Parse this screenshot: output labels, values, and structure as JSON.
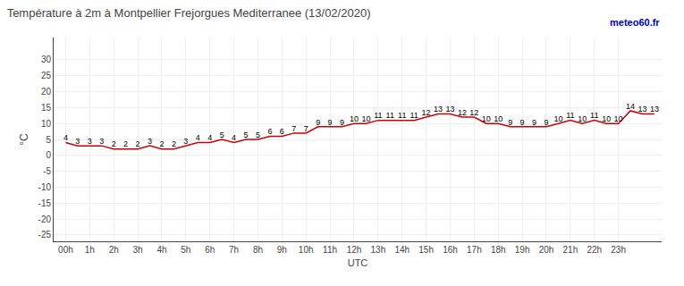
{
  "chart_data": {
    "type": "line",
    "title": "Température à 2m à Montpellier Frejorgues Mediterranee (13/02/2020)",
    "x_label": "UTC",
    "y_label": "°C",
    "annotations": [
      {
        "text": "meteo60.fr",
        "color": "#0000cc"
      }
    ],
    "x": [
      0,
      0.5,
      1,
      1.5,
      2,
      2.5,
      3,
      3.5,
      4,
      4.5,
      5,
      5.5,
      6,
      6.5,
      7,
      7.5,
      8,
      8.5,
      9,
      9.5,
      10,
      10.5,
      11,
      11.5,
      12,
      12.5,
      13,
      13.5,
      14,
      14.5,
      15,
      15.5,
      16,
      16.5,
      17,
      17.5,
      18,
      18.5,
      19,
      19.5,
      20,
      20.5,
      21,
      21.5,
      22,
      22.5,
      23,
      23.5,
      24,
      24.5
    ],
    "values": [
      4,
      3,
      3,
      3,
      2,
      2,
      2,
      3,
      2,
      2,
      3,
      4,
      4,
      5,
      4,
      5,
      5,
      6,
      6,
      7,
      7,
      9,
      9,
      9,
      10,
      10,
      11,
      11,
      11,
      11,
      12,
      13,
      13,
      12,
      12,
      10,
      10,
      9,
      9,
      9,
      9,
      10,
      11,
      10,
      11,
      10,
      10,
      14,
      13,
      13
    ],
    "color": "#cc0000",
    "data_labels": true,
    "grid": true,
    "xlim": [
      -0.5,
      24.8
    ],
    "xticks": [
      {
        "value": 0,
        "label": "00h"
      },
      {
        "value": 1,
        "label": "1h"
      },
      {
        "value": 2,
        "label": "2h"
      },
      {
        "value": 3,
        "label": "3h"
      },
      {
        "value": 4,
        "label": "4h"
      },
      {
        "value": 5,
        "label": "5h"
      },
      {
        "value": 6,
        "label": "6h"
      },
      {
        "value": 7,
        "label": "7h"
      },
      {
        "value": 8,
        "label": "8h"
      },
      {
        "value": 9,
        "label": "9h"
      },
      {
        "value": 10,
        "label": "10h"
      },
      {
        "value": 11,
        "label": "11h"
      },
      {
        "value": 12,
        "label": "12h"
      },
      {
        "value": 13,
        "label": "13h"
      },
      {
        "value": 14,
        "label": "14h"
      },
      {
        "value": 15,
        "label": "15h"
      },
      {
        "value": 16,
        "label": "16h"
      },
      {
        "value": 17,
        "label": "17h"
      },
      {
        "value": 18,
        "label": "18h"
      },
      {
        "value": 19,
        "label": "19h"
      },
      {
        "value": 20,
        "label": "20h"
      },
      {
        "value": 21,
        "label": "21h"
      },
      {
        "value": 22,
        "label": "22h"
      },
      {
        "value": 23,
        "label": "23h"
      }
    ],
    "ylim": [
      -27,
      37
    ],
    "yticks": [
      -25,
      -20,
      -15,
      -10,
      -5,
      0,
      5,
      10,
      15,
      20,
      25,
      30
    ]
  }
}
